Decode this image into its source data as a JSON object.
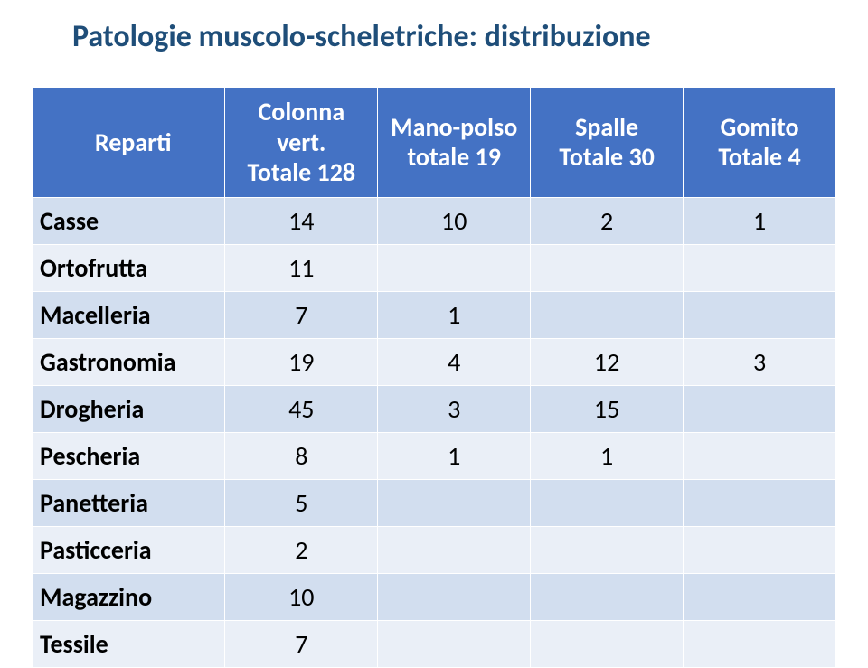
{
  "title": "Patologie muscolo-scheletriche: distribuzione",
  "colors": {
    "title_color": "#1f4e79",
    "header_bg": "#4472c4",
    "header_text": "#ffffff",
    "row_odd_bg": "#d2deef",
    "row_even_bg": "#eaeff7",
    "body_text": "#000000"
  },
  "typography": {
    "title_fontsize": 34,
    "header_fontsize": 28,
    "cell_fontsize": 28,
    "font_family": "Calibri"
  },
  "table": {
    "columns": [
      {
        "line1": "Reparti",
        "line2": ""
      },
      {
        "line1": "Colonna vert.",
        "line2": "Totale 128"
      },
      {
        "line1": "Mano-polso",
        "line2": "totale  19"
      },
      {
        "line1": "Spalle",
        "line2": "Totale 30"
      },
      {
        "line1": "Gomito",
        "line2": "Totale 4"
      }
    ],
    "rows": [
      {
        "label": "Casse",
        "c1": "14",
        "c2": "10",
        "c3": "2",
        "c4": "1"
      },
      {
        "label": "Ortofrutta",
        "c1": "11",
        "c2": "",
        "c3": "",
        "c4": ""
      },
      {
        "label": "Macelleria",
        "c1": "7",
        "c2": "1",
        "c3": "",
        "c4": ""
      },
      {
        "label": "Gastronomia",
        "c1": "19",
        "c2": "4",
        "c3": "12",
        "c4": "3"
      },
      {
        "label": "Drogheria",
        "c1": "45",
        "c2": "3",
        "c3": "15",
        "c4": ""
      },
      {
        "label": "Pescheria",
        "c1": "8",
        "c2": "1",
        "c3": "1",
        "c4": ""
      },
      {
        "label": "Panetteria",
        "c1": "5",
        "c2": "",
        "c3": "",
        "c4": ""
      },
      {
        "label": "Pasticceria",
        "c1": "2",
        "c2": "",
        "c3": "",
        "c4": ""
      },
      {
        "label": "Magazzino",
        "c1": "10",
        "c2": "",
        "c3": "",
        "c4": ""
      },
      {
        "label": "Tessile",
        "c1": "7",
        "c2": "",
        "c3": "",
        "c4": ""
      }
    ]
  }
}
